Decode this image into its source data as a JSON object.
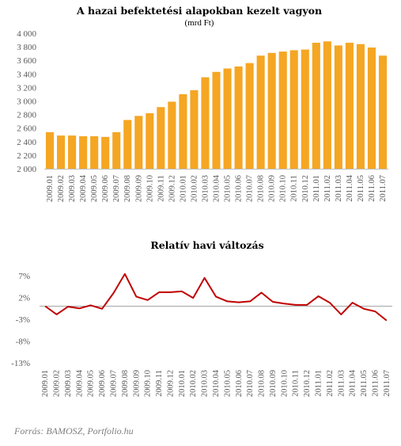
{
  "chart_data": [
    {
      "type": "bar",
      "title": "A hazai befektetési  alapokban kezelt vagyon",
      "subtitle": "(mrd Ft)",
      "categories": [
        "2009.01",
        "2009.02",
        "2009.03",
        "2009.04",
        "2009.05",
        "2009.06",
        "2009.07",
        "2009.08",
        "2009.09",
        "2009.10",
        "2009.11",
        "2009.12",
        "2010.01",
        "2010.02",
        "2010.03",
        "2010.04",
        "2010.05",
        "2010.06",
        "2010.07",
        "2010.08",
        "2010.09",
        "2010.10",
        "2010.11",
        "2010.12",
        "2011.01",
        "2011.02",
        "2011.03",
        "2011.04",
        "2011.05",
        "2011.06",
        "2011.07"
      ],
      "values": [
        2540,
        2490,
        2490,
        2480,
        2480,
        2470,
        2540,
        2720,
        2780,
        2820,
        2910,
        2990,
        3100,
        3160,
        3350,
        3430,
        3480,
        3510,
        3560,
        3670,
        3710,
        3730,
        3750,
        3760,
        3860,
        3880,
        3820,
        3860,
        3840,
        3790,
        3670
      ],
      "yticks": [
        "2 000",
        "2 200",
        "2 400",
        "2 600",
        "2 800",
        "3 000",
        "3 200",
        "3 400",
        "3 600",
        "3 800",
        "4 000"
      ],
      "ylim": [
        2000,
        4000
      ],
      "color": "#F5A623"
    },
    {
      "type": "line",
      "title": "Relatív havi változás",
      "categories": [
        "2009.01",
        "2009.02",
        "2009.03",
        "2009.04",
        "2009.05",
        "2009.06",
        "2009.07",
        "2009.08",
        "2009.09",
        "2009.10",
        "2009.11",
        "2009.12",
        "2010.01",
        "2010.02",
        "2010.03",
        "2010.04",
        "2010.05",
        "2010.06",
        "2010.07",
        "2010.08",
        "2010.09",
        "2010.10",
        "2010.11",
        "2010.12",
        "2011.01",
        "2011.02",
        "2011.03",
        "2011.04",
        "2011.05",
        "2011.06",
        "2011.07"
      ],
      "values": [
        0.0,
        -1.9,
        -0.1,
        -0.5,
        0.2,
        -0.6,
        3.0,
        7.4,
        2.2,
        1.4,
        3.2,
        3.2,
        3.4,
        1.9,
        6.5,
        2.2,
        1.1,
        0.9,
        1.1,
        3.1,
        1.0,
        0.6,
        0.3,
        0.3,
        2.3,
        0.8,
        -1.9,
        0.8,
        -0.6,
        -1.2,
        -3.3
      ],
      "yticks": [
        "-13%",
        "-8%",
        "-3%",
        "2%",
        "7%"
      ],
      "ylim": [
        -13,
        7
      ],
      "color": "#C00000"
    }
  ],
  "source": "Forrás: BAMOSZ, Portfolio.hu"
}
